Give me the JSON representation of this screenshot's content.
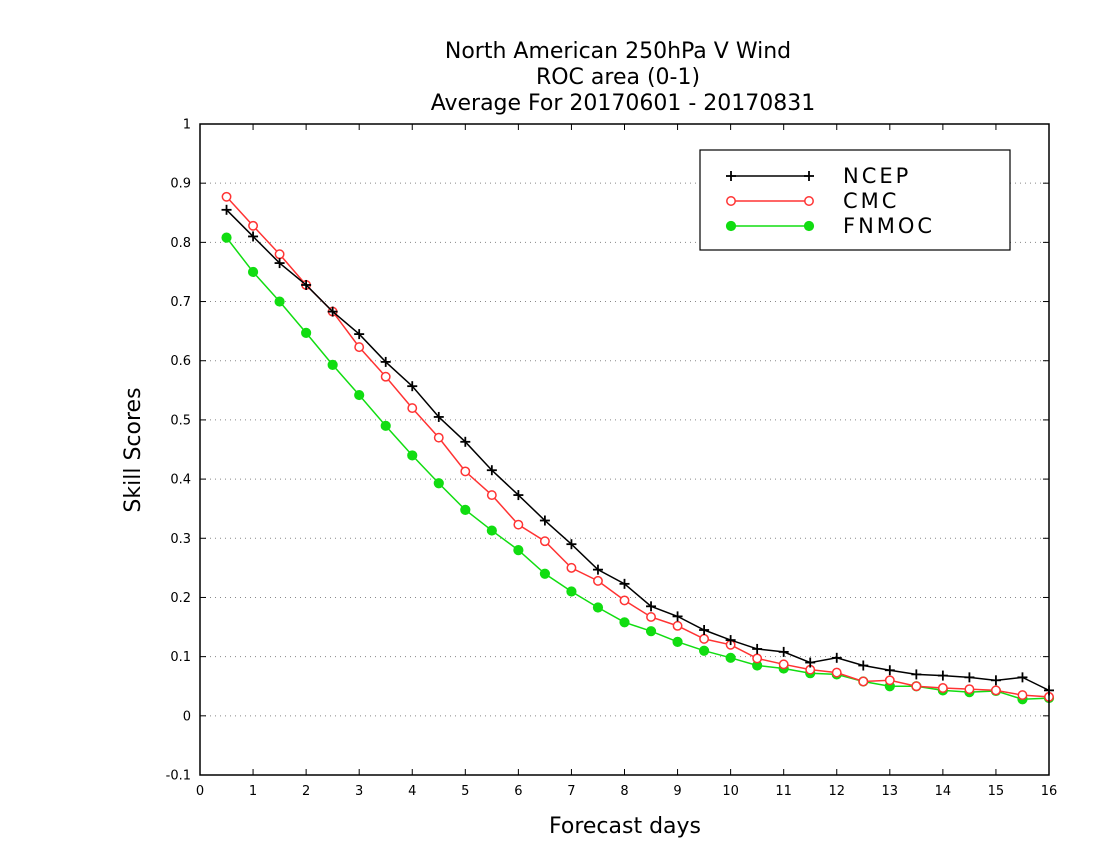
{
  "chart_data": {
    "type": "line",
    "title_lines": [
      "North American 250hPa V Wind",
      "ROC area (0-1)",
      "Average For 20170601 - 20170831"
    ],
    "xlabel": "Forecast days",
    "ylabel": "Skill Scores",
    "xlim": [
      0,
      16
    ],
    "ylim": [
      -0.1,
      1
    ],
    "x_ticks": [
      "0",
      "1",
      "2",
      "3",
      "4",
      "5",
      "6",
      "7",
      "8",
      "9",
      "10",
      "11",
      "12",
      "13",
      "14",
      "15",
      "16"
    ],
    "y_ticks": [
      "-0.1",
      "0",
      "0.1",
      "0.2",
      "0.3",
      "0.4",
      "0.5",
      "0.6",
      "0.7",
      "0.8",
      "0.9",
      "1"
    ],
    "grid": "horizontal dotted",
    "legend_position": "top-right",
    "x": [
      0.5,
      1,
      1.5,
      2,
      2.5,
      3,
      3.5,
      4,
      4.5,
      5,
      5.5,
      6,
      6.5,
      7,
      7.5,
      8,
      8.5,
      9,
      9.5,
      10,
      10.5,
      11,
      11.5,
      12,
      12.5,
      13,
      13.5,
      14,
      14.5,
      15,
      15.5,
      16
    ],
    "series": [
      {
        "name": "NCEP",
        "color": "#000000",
        "marker": "plus",
        "values": [
          0.855,
          0.81,
          0.765,
          0.728,
          0.683,
          0.645,
          0.598,
          0.557,
          0.505,
          0.463,
          0.415,
          0.373,
          0.33,
          0.29,
          0.247,
          0.223,
          0.185,
          0.168,
          0.145,
          0.128,
          0.113,
          0.108,
          0.09,
          0.098,
          0.085,
          0.077,
          0.07,
          0.068,
          0.065,
          0.06,
          0.065,
          0.043
        ]
      },
      {
        "name": "CMC",
        "color": "#ff3333",
        "marker": "open-circle",
        "values": [
          0.877,
          0.828,
          0.78,
          0.728,
          0.683,
          0.623,
          0.573,
          0.52,
          0.47,
          0.413,
          0.373,
          0.323,
          0.295,
          0.25,
          0.228,
          0.195,
          0.167,
          0.152,
          0.13,
          0.12,
          0.097,
          0.087,
          0.078,
          0.073,
          0.058,
          0.06,
          0.05,
          0.047,
          0.045,
          0.043,
          0.035,
          0.032
        ]
      },
      {
        "name": "FNMOC",
        "color": "#11dd11",
        "marker": "filled-circle",
        "values": [
          0.808,
          0.75,
          0.7,
          0.647,
          0.593,
          0.542,
          0.49,
          0.44,
          0.393,
          0.348,
          0.313,
          0.28,
          0.24,
          0.21,
          0.183,
          0.158,
          0.143,
          0.125,
          0.11,
          0.098,
          0.085,
          0.08,
          0.072,
          0.07,
          0.058,
          0.05,
          0.05,
          0.043,
          0.04,
          0.042,
          0.028,
          0.03
        ]
      }
    ]
  }
}
